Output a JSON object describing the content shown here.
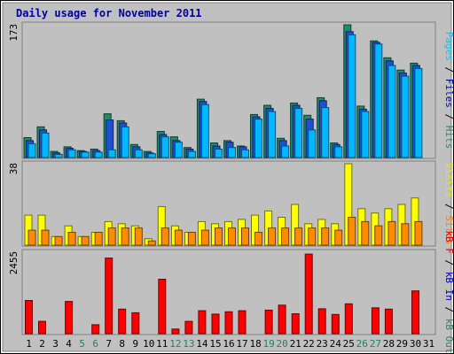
{
  "chart_data": {
    "type": "bar",
    "title": "Daily usage for November 2011",
    "days": [
      "1",
      "2",
      "3",
      "4",
      "5",
      "6",
      "7",
      "8",
      "9",
      "10",
      "11",
      "12",
      "13",
      "14",
      "15",
      "16",
      "17",
      "18",
      "19",
      "20",
      "21",
      "22",
      "23",
      "24",
      "25",
      "26",
      "27",
      "28",
      "29",
      "30",
      "31"
    ],
    "weekend_days": [
      "5",
      "6",
      "12",
      "13",
      "19",
      "20",
      "26",
      "27"
    ],
    "panels": [
      {
        "id": "hits",
        "max_label": "173",
        "ymax": 173,
        "side_labels": [
          {
            "text": "Pages",
            "color": "#00c8ff"
          },
          {
            "text": " / ",
            "color": "#000000"
          },
          {
            "text": "Files",
            "color": "#0000a0"
          },
          {
            "text": " / ",
            "color": "#000000"
          },
          {
            "text": "Hits",
            "color": "#2a8a6a"
          }
        ],
        "series": [
          {
            "name": "Hits",
            "color": "#1e8c6a",
            "values": [
              26,
              40,
              8,
              14,
              9,
              11,
              57,
              48,
              17,
              8,
              34,
              27,
              13,
              76,
              19,
              22,
              15,
              56,
              68,
              25,
              71,
              55,
              78,
              19,
              173,
              67,
              152,
              130,
              114,
              123,
              0
            ]
          },
          {
            "name": "Files",
            "color": "#2050d0",
            "values": [
              22,
              36,
              6,
              12,
              8,
              9,
              49,
              45,
              14,
              6,
              30,
              22,
              11,
              73,
              15,
              20,
              14,
              53,
              64,
              22,
              68,
              50,
              74,
              17,
              164,
              63,
              150,
              126,
              110,
              120,
              0
            ]
          },
          {
            "name": "Pages",
            "color": "#00b8ff",
            "values": [
              18,
              32,
              4,
              10,
              7,
              7,
              10,
              40,
              10,
              5,
              27,
              20,
              8,
              69,
              11,
              13,
              10,
              50,
              60,
              15,
              64,
              36,
              65,
              14,
              160,
              60,
              148,
              120,
              106,
              116,
              0
            ]
          }
        ]
      },
      {
        "id": "visits",
        "max_label": "38",
        "ymax": 38,
        "side_labels": [
          {
            "text": "Visits",
            "color": "#e8e800"
          },
          {
            "text": " / ",
            "color": "#000000"
          },
          {
            "text": "Sites",
            "color": "#ff8000"
          }
        ],
        "series": [
          {
            "name": "Visits",
            "color": "#ffff00",
            "values": [
              14,
              14,
              4,
              9,
              4,
              6,
              11,
              10,
              9,
              3,
              18,
              9,
              6,
              11,
              10,
              11,
              12,
              14,
              16,
              13,
              19,
              10,
              12,
              10,
              38,
              17,
              15,
              17,
              19,
              22,
              0
            ]
          },
          {
            "name": "Sites",
            "color": "#ff8c00",
            "values": [
              7,
              7,
              4,
              6,
              4,
              6,
              8,
              8,
              8,
              2,
              8,
              7,
              6,
              7,
              8,
              8,
              8,
              6,
              8,
              8,
              8,
              8,
              8,
              7,
              13,
              11,
              9,
              11,
              10,
              11,
              0
            ]
          }
        ]
      },
      {
        "id": "kbytes",
        "max_label": "2455",
        "ymax": 2455,
        "side_labels": [
          {
            "text": "kB F",
            "color": "#e00000"
          },
          {
            "text": " / ",
            "color": "#000000"
          },
          {
            "text": "kB In",
            "color": "#0000c0"
          },
          {
            "text": " / ",
            "color": "#000000"
          },
          {
            "text": "kB Out",
            "color": "#2a8a6a"
          }
        ],
        "series": [
          {
            "name": "kB F",
            "color": "#ff0000",
            "values": [
              1000,
              370,
              0,
              970,
              0,
              270,
              2280,
              740,
              630,
              0,
              1640,
              140,
              370,
              690,
              590,
              660,
              690,
              0,
              710,
              860,
              600,
              2400,
              750,
              580,
              900,
              0,
              780,
              740,
              0,
              1290,
              0
            ]
          }
        ]
      }
    ]
  }
}
